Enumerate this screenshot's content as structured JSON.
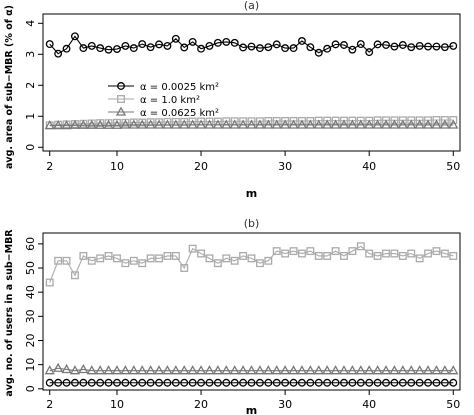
{
  "chart_data": [
    {
      "type": "line",
      "title": "(a)",
      "xlabel": "m",
      "ylabel": "avg. area of sub−MBR (% of α)",
      "x": [
        2,
        3,
        4,
        5,
        6,
        7,
        8,
        9,
        10,
        11,
        12,
        13,
        14,
        15,
        16,
        17,
        18,
        19,
        20,
        21,
        22,
        23,
        24,
        25,
        26,
        27,
        28,
        29,
        30,
        31,
        32,
        33,
        34,
        35,
        36,
        37,
        38,
        39,
        40,
        41,
        42,
        43,
        44,
        45,
        46,
        47,
        48,
        49,
        50
      ],
      "xticks": [
        2,
        10,
        20,
        30,
        40,
        50
      ],
      "yticks": [
        0,
        1,
        2,
        3,
        4
      ],
      "xlim": [
        1.2,
        50.8
      ],
      "ylim": [
        -0.12,
        4.3
      ],
      "legend_position": "middle-left",
      "series": [
        {
          "name": "α = 0.0025 km²",
          "marker": "circle",
          "color": "#000000",
          "values": [
            3.33,
            3.02,
            3.18,
            3.58,
            3.2,
            3.27,
            3.2,
            3.15,
            3.17,
            3.27,
            3.2,
            3.33,
            3.23,
            3.32,
            3.27,
            3.5,
            3.22,
            3.4,
            3.18,
            3.27,
            3.37,
            3.4,
            3.37,
            3.22,
            3.25,
            3.2,
            3.23,
            3.32,
            3.2,
            3.2,
            3.43,
            3.23,
            3.05,
            3.18,
            3.32,
            3.3,
            3.15,
            3.33,
            3.07,
            3.32,
            3.3,
            3.25,
            3.3,
            3.23,
            3.27,
            3.25,
            3.25,
            3.23,
            3.27
          ]
        },
        {
          "name": "α = 1.0 km²",
          "marker": "square",
          "color": "#aaaaaa",
          "values": [
            0.71,
            0.73,
            0.74,
            0.75,
            0.76,
            0.77,
            0.78,
            0.78,
            0.79,
            0.79,
            0.8,
            0.8,
            0.81,
            0.81,
            0.82,
            0.82,
            0.82,
            0.83,
            0.83,
            0.83,
            0.83,
            0.84,
            0.84,
            0.84,
            0.84,
            0.84,
            0.85,
            0.85,
            0.85,
            0.85,
            0.85,
            0.85,
            0.86,
            0.86,
            0.86,
            0.86,
            0.86,
            0.86,
            0.86,
            0.87,
            0.87,
            0.87,
            0.87,
            0.87,
            0.87,
            0.87,
            0.88,
            0.88,
            0.88
          ]
        },
        {
          "name": "α = 0.0625 km²",
          "marker": "triangle",
          "color": "#777777",
          "values": [
            0.7,
            0.7,
            0.7,
            0.71,
            0.71,
            0.71,
            0.71,
            0.71,
            0.71,
            0.72,
            0.72,
            0.72,
            0.72,
            0.72,
            0.72,
            0.72,
            0.72,
            0.72,
            0.72,
            0.72,
            0.72,
            0.72,
            0.72,
            0.72,
            0.72,
            0.72,
            0.72,
            0.72,
            0.72,
            0.72,
            0.72,
            0.72,
            0.72,
            0.72,
            0.72,
            0.72,
            0.72,
            0.72,
            0.72,
            0.72,
            0.72,
            0.72,
            0.72,
            0.72,
            0.72,
            0.72,
            0.72,
            0.72,
            0.72
          ]
        }
      ]
    },
    {
      "type": "line",
      "title": "(b)",
      "xlabel": "m",
      "ylabel": "avg. no. of users in a sub−MBR",
      "x": [
        2,
        3,
        4,
        5,
        6,
        7,
        8,
        9,
        10,
        11,
        12,
        13,
        14,
        15,
        16,
        17,
        18,
        19,
        20,
        21,
        22,
        23,
        24,
        25,
        26,
        27,
        28,
        29,
        30,
        31,
        32,
        33,
        34,
        35,
        36,
        37,
        38,
        39,
        40,
        41,
        42,
        43,
        44,
        45,
        46,
        47,
        48,
        49,
        50
      ],
      "xticks": [
        2,
        10,
        20,
        30,
        40,
        50
      ],
      "yticks": [
        0,
        10,
        20,
        30,
        40,
        50,
        60
      ],
      "xlim": [
        1.2,
        50.8
      ],
      "ylim": [
        -0.5,
        64.5
      ],
      "series": [
        {
          "name": "α = 0.0025 km²",
          "marker": "circle",
          "color": "#000000",
          "values": [
            2.5,
            2.5,
            2.5,
            2.5,
            2.5,
            2.5,
            2.5,
            2.5,
            2.5,
            2.5,
            2.5,
            2.5,
            2.5,
            2.5,
            2.5,
            2.5,
            2.5,
            2.5,
            2.5,
            2.5,
            2.5,
            2.5,
            2.5,
            2.5,
            2.5,
            2.5,
            2.5,
            2.5,
            2.5,
            2.5,
            2.5,
            2.5,
            2.5,
            2.5,
            2.5,
            2.5,
            2.5,
            2.5,
            2.5,
            2.5,
            2.5,
            2.5,
            2.5,
            2.5,
            2.5,
            2.5,
            2.5,
            2.5,
            2.5
          ]
        },
        {
          "name": "α = 1.0 km²",
          "marker": "square",
          "color": "#aaaaaa",
          "values": [
            44,
            53,
            53,
            47,
            55,
            53,
            54,
            55,
            54,
            52,
            53,
            52,
            54,
            54,
            55,
            55,
            50,
            58,
            56,
            54,
            52,
            54,
            53,
            55,
            54,
            52,
            53,
            57,
            56,
            57,
            56,
            57,
            55,
            55,
            57,
            55,
            57,
            59,
            56,
            55,
            56,
            56,
            55,
            56,
            54,
            56,
            57,
            56,
            55
          ]
        },
        {
          "name": "α = 0.0625 km²",
          "marker": "triangle",
          "color": "#777777",
          "values": [
            7.5,
            8.5,
            8,
            7.5,
            8,
            7.5,
            7.5,
            7.5,
            7.5,
            7.5,
            7.5,
            7.5,
            7.5,
            7.5,
            7.5,
            7.5,
            7.5,
            7.5,
            7.5,
            7.5,
            7.5,
            7.5,
            7.5,
            7.5,
            7.5,
            7.5,
            7.5,
            7.5,
            7.5,
            7.5,
            7.5,
            7.5,
            7.5,
            7.5,
            7.5,
            7.5,
            7.5,
            7.5,
            7.5,
            7.5,
            7.5,
            7.5,
            7.5,
            7.5,
            7.5,
            7.5,
            7.5,
            7.5,
            7.5
          ]
        }
      ]
    }
  ]
}
